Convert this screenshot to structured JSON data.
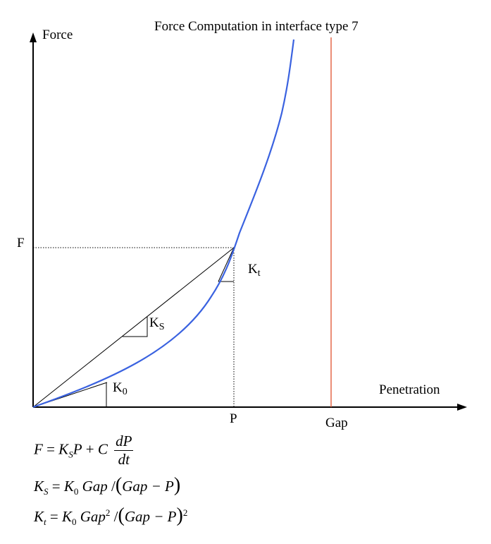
{
  "title": "Force Computation in interface type 7",
  "axes": {
    "y_label": "Force",
    "x_label": "Penetration"
  },
  "labels": {
    "F": "F",
    "P": "P",
    "gap": "Gap",
    "K0": "K",
    "K0_sub": "0",
    "Ks": "K",
    "Ks_sub": "S",
    "Kt": "K",
    "Kt_sub": "t"
  },
  "formulas": {
    "f1": {
      "lhs": "F",
      "eq": " = ",
      "ks": "K",
      "ks_sub": "S",
      "p": "P",
      "plus": " + ",
      "c": "C",
      "num": "dP",
      "den": "dt"
    },
    "f2": {
      "lhs": "K",
      "lhs_sub": "S",
      "eq": " = ",
      "k0": "K",
      "k0_sub": "0",
      "gap": "Gap",
      "slash": " /",
      "open": "(",
      "inner": "Gap − P",
      "close": ")"
    },
    "f3": {
      "lhs": "K",
      "lhs_sub": "t",
      "eq": " = ",
      "k0": "K",
      "k0_sub": "0",
      "gap": "Gap",
      "gap_sup": "2",
      "slash": " /",
      "open": "(",
      "inner": "Gap − P",
      "close": ")",
      "close_sup": "2"
    }
  },
  "colors": {
    "curve": "#3a62e0",
    "gap_line": "#e0522e",
    "axis": "#000000"
  }
}
